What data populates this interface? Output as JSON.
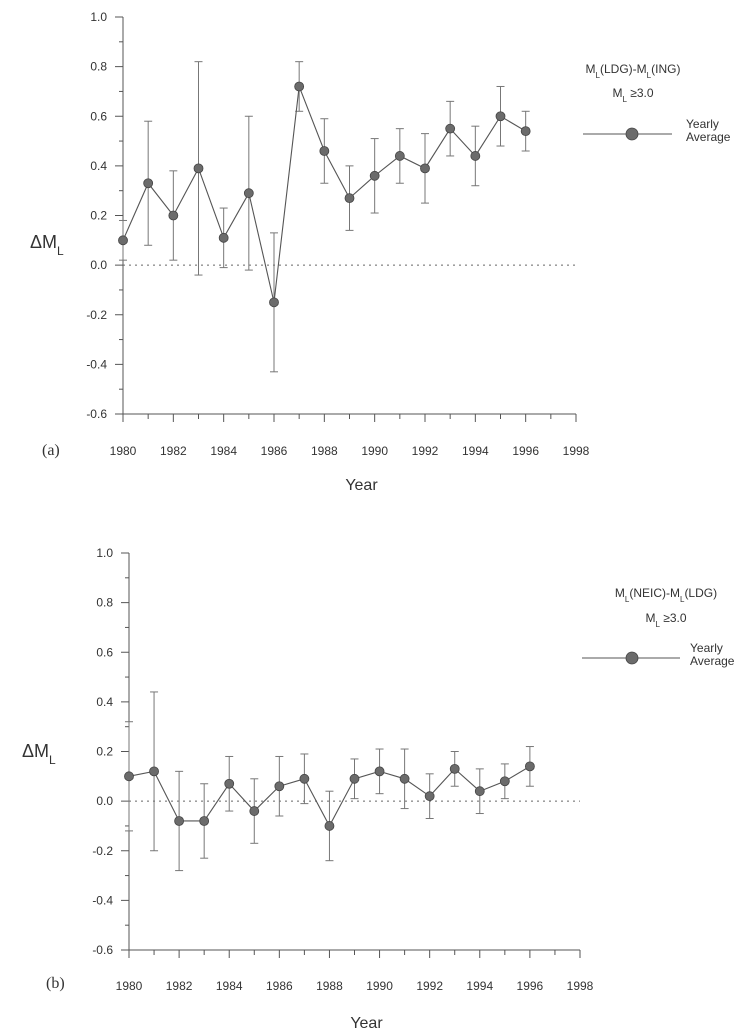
{
  "chart_data": [
    {
      "type": "line",
      "panel_label": "(a)",
      "ylabel_main": "ΔM",
      "ylabel_sub": "L",
      "xlabel": "Year",
      "xlim": [
        1980,
        1998
      ],
      "ylim": [
        -0.6,
        1.0
      ],
      "x_ticks": [
        "1980",
        "1982",
        "1984",
        "1986",
        "1988",
        "1990",
        "1992",
        "1994",
        "1996",
        "1998"
      ],
      "y_ticks": [
        "1.0",
        "0.8",
        "0.6",
        "0.4",
        "0.2",
        "0.0",
        "-0.2",
        "-0.4",
        "-0.6"
      ],
      "reference_line": 0.0,
      "legend": {
        "title_line1": "M_L(LDG)-M_L(ING)",
        "title_line2": "M_L ≥3.0",
        "entry_line1": "Yearly",
        "entry_line2": "Average"
      },
      "series": [
        {
          "name": "Yearly Average",
          "x": [
            1980,
            1981,
            1982,
            1983,
            1984,
            1985,
            1986,
            1987,
            1988,
            1989,
            1990,
            1991,
            1992,
            1993,
            1994,
            1995,
            1996
          ],
          "y": [
            0.1,
            0.33,
            0.2,
            0.39,
            0.11,
            0.29,
            -0.15,
            0.72,
            0.46,
            0.27,
            0.36,
            0.44,
            0.39,
            0.55,
            0.44,
            0.6,
            0.54
          ],
          "err": [
            0.08,
            0.25,
            0.18,
            0.43,
            0.12,
            0.31,
            0.28,
            0.1,
            0.13,
            0.13,
            0.15,
            0.11,
            0.14,
            0.11,
            0.12,
            0.12,
            0.08
          ]
        }
      ]
    },
    {
      "type": "line",
      "panel_label": "(b)",
      "ylabel_main": "ΔM",
      "ylabel_sub": "L",
      "xlabel": "Year",
      "xlim": [
        1980,
        1998
      ],
      "ylim": [
        -0.6,
        1.0
      ],
      "x_ticks": [
        "1980",
        "1982",
        "1984",
        "1986",
        "1988",
        "1990",
        "1992",
        "1994",
        "1996",
        "1998"
      ],
      "y_ticks": [
        "1.0",
        "0.8",
        "0.6",
        "0.4",
        "0.2",
        "0.0",
        "-0.2",
        "-0.4",
        "-0.6"
      ],
      "reference_line": 0.0,
      "legend": {
        "title_line1": "M_L(NEIC)-M_L(LDG)",
        "title_line2": "M_L ≥3.0",
        "entry_line1": "Yearly",
        "entry_line2": "Average"
      },
      "series": [
        {
          "name": "Yearly Average",
          "x": [
            1980,
            1981,
            1982,
            1983,
            1984,
            1985,
            1986,
            1987,
            1988,
            1989,
            1990,
            1991,
            1992,
            1993,
            1994,
            1995,
            1996
          ],
          "y": [
            0.1,
            0.12,
            -0.08,
            -0.08,
            0.07,
            -0.04,
            0.06,
            0.09,
            -0.1,
            0.09,
            0.12,
            0.09,
            0.02,
            0.13,
            0.04,
            0.08,
            0.14
          ],
          "err": [
            0.22,
            0.32,
            0.2,
            0.15,
            0.11,
            0.13,
            0.12,
            0.1,
            0.14,
            0.08,
            0.09,
            0.12,
            0.09,
            0.07,
            0.09,
            0.07,
            0.08
          ]
        }
      ]
    }
  ]
}
